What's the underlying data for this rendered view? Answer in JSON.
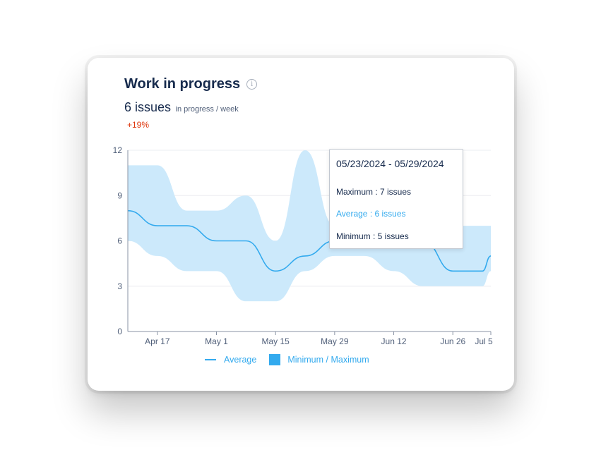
{
  "widget": {
    "title": "Work in progress",
    "info_icon": "info-icon",
    "metric_value": "6 issues",
    "metric_unit": "in progress / week",
    "change": "+19%",
    "change_color": "#de350b"
  },
  "tooltip": {
    "date_range": "05/23/2024 - 05/29/2024",
    "maximum": "Maximum : 7 issues",
    "average": "Average : 6 issues",
    "minimum": "Minimum : 5 issues"
  },
  "legend": {
    "average_label": "Average",
    "minmax_label": "Minimum / Maximum"
  },
  "chart_data": {
    "type": "area",
    "xlabel": "",
    "ylabel": "",
    "ylim": [
      0,
      12
    ],
    "yticks": [
      0,
      3,
      6,
      9,
      12
    ],
    "x_start": "2024-04-10",
    "x_end": "2024-07-05",
    "xticks": [
      {
        "date": "2024-04-17",
        "label": "Apr 17"
      },
      {
        "date": "2024-05-01",
        "label": "May 1"
      },
      {
        "date": "2024-05-15",
        "label": "May 15"
      },
      {
        "date": "2024-05-29",
        "label": "May 29"
      },
      {
        "date": "2024-06-12",
        "label": "Jun 12"
      },
      {
        "date": "2024-06-26",
        "label": "Jun 26"
      },
      {
        "date": "2024-07-05",
        "label": "Jul 5"
      }
    ],
    "grid": true,
    "legend_position": "bottom",
    "accent_color": "#33aaee",
    "band_color": "#cce9fb",
    "x": [
      "2024-04-10",
      "2024-04-17",
      "2024-04-24",
      "2024-05-01",
      "2024-05-08",
      "2024-05-15",
      "2024-05-22",
      "2024-05-29",
      "2024-06-05",
      "2024-06-12",
      "2024-06-19",
      "2024-06-26",
      "2024-07-03",
      "2024-07-05"
    ],
    "series": [
      {
        "name": "Average",
        "values": [
          8,
          7,
          7,
          6,
          6,
          4,
          5,
          6,
          6,
          6,
          6,
          4,
          4,
          5
        ]
      },
      {
        "name": "Maximum",
        "values": [
          11,
          11,
          8,
          8,
          9,
          6,
          12,
          7,
          7,
          7,
          7,
          7,
          7,
          7
        ]
      },
      {
        "name": "Minimum",
        "values": [
          6,
          5,
          4,
          4,
          2,
          2,
          4,
          5,
          5,
          4,
          3,
          3,
          3,
          4
        ]
      }
    ],
    "highlight": {
      "date": "2024-05-29",
      "value": 6
    }
  }
}
